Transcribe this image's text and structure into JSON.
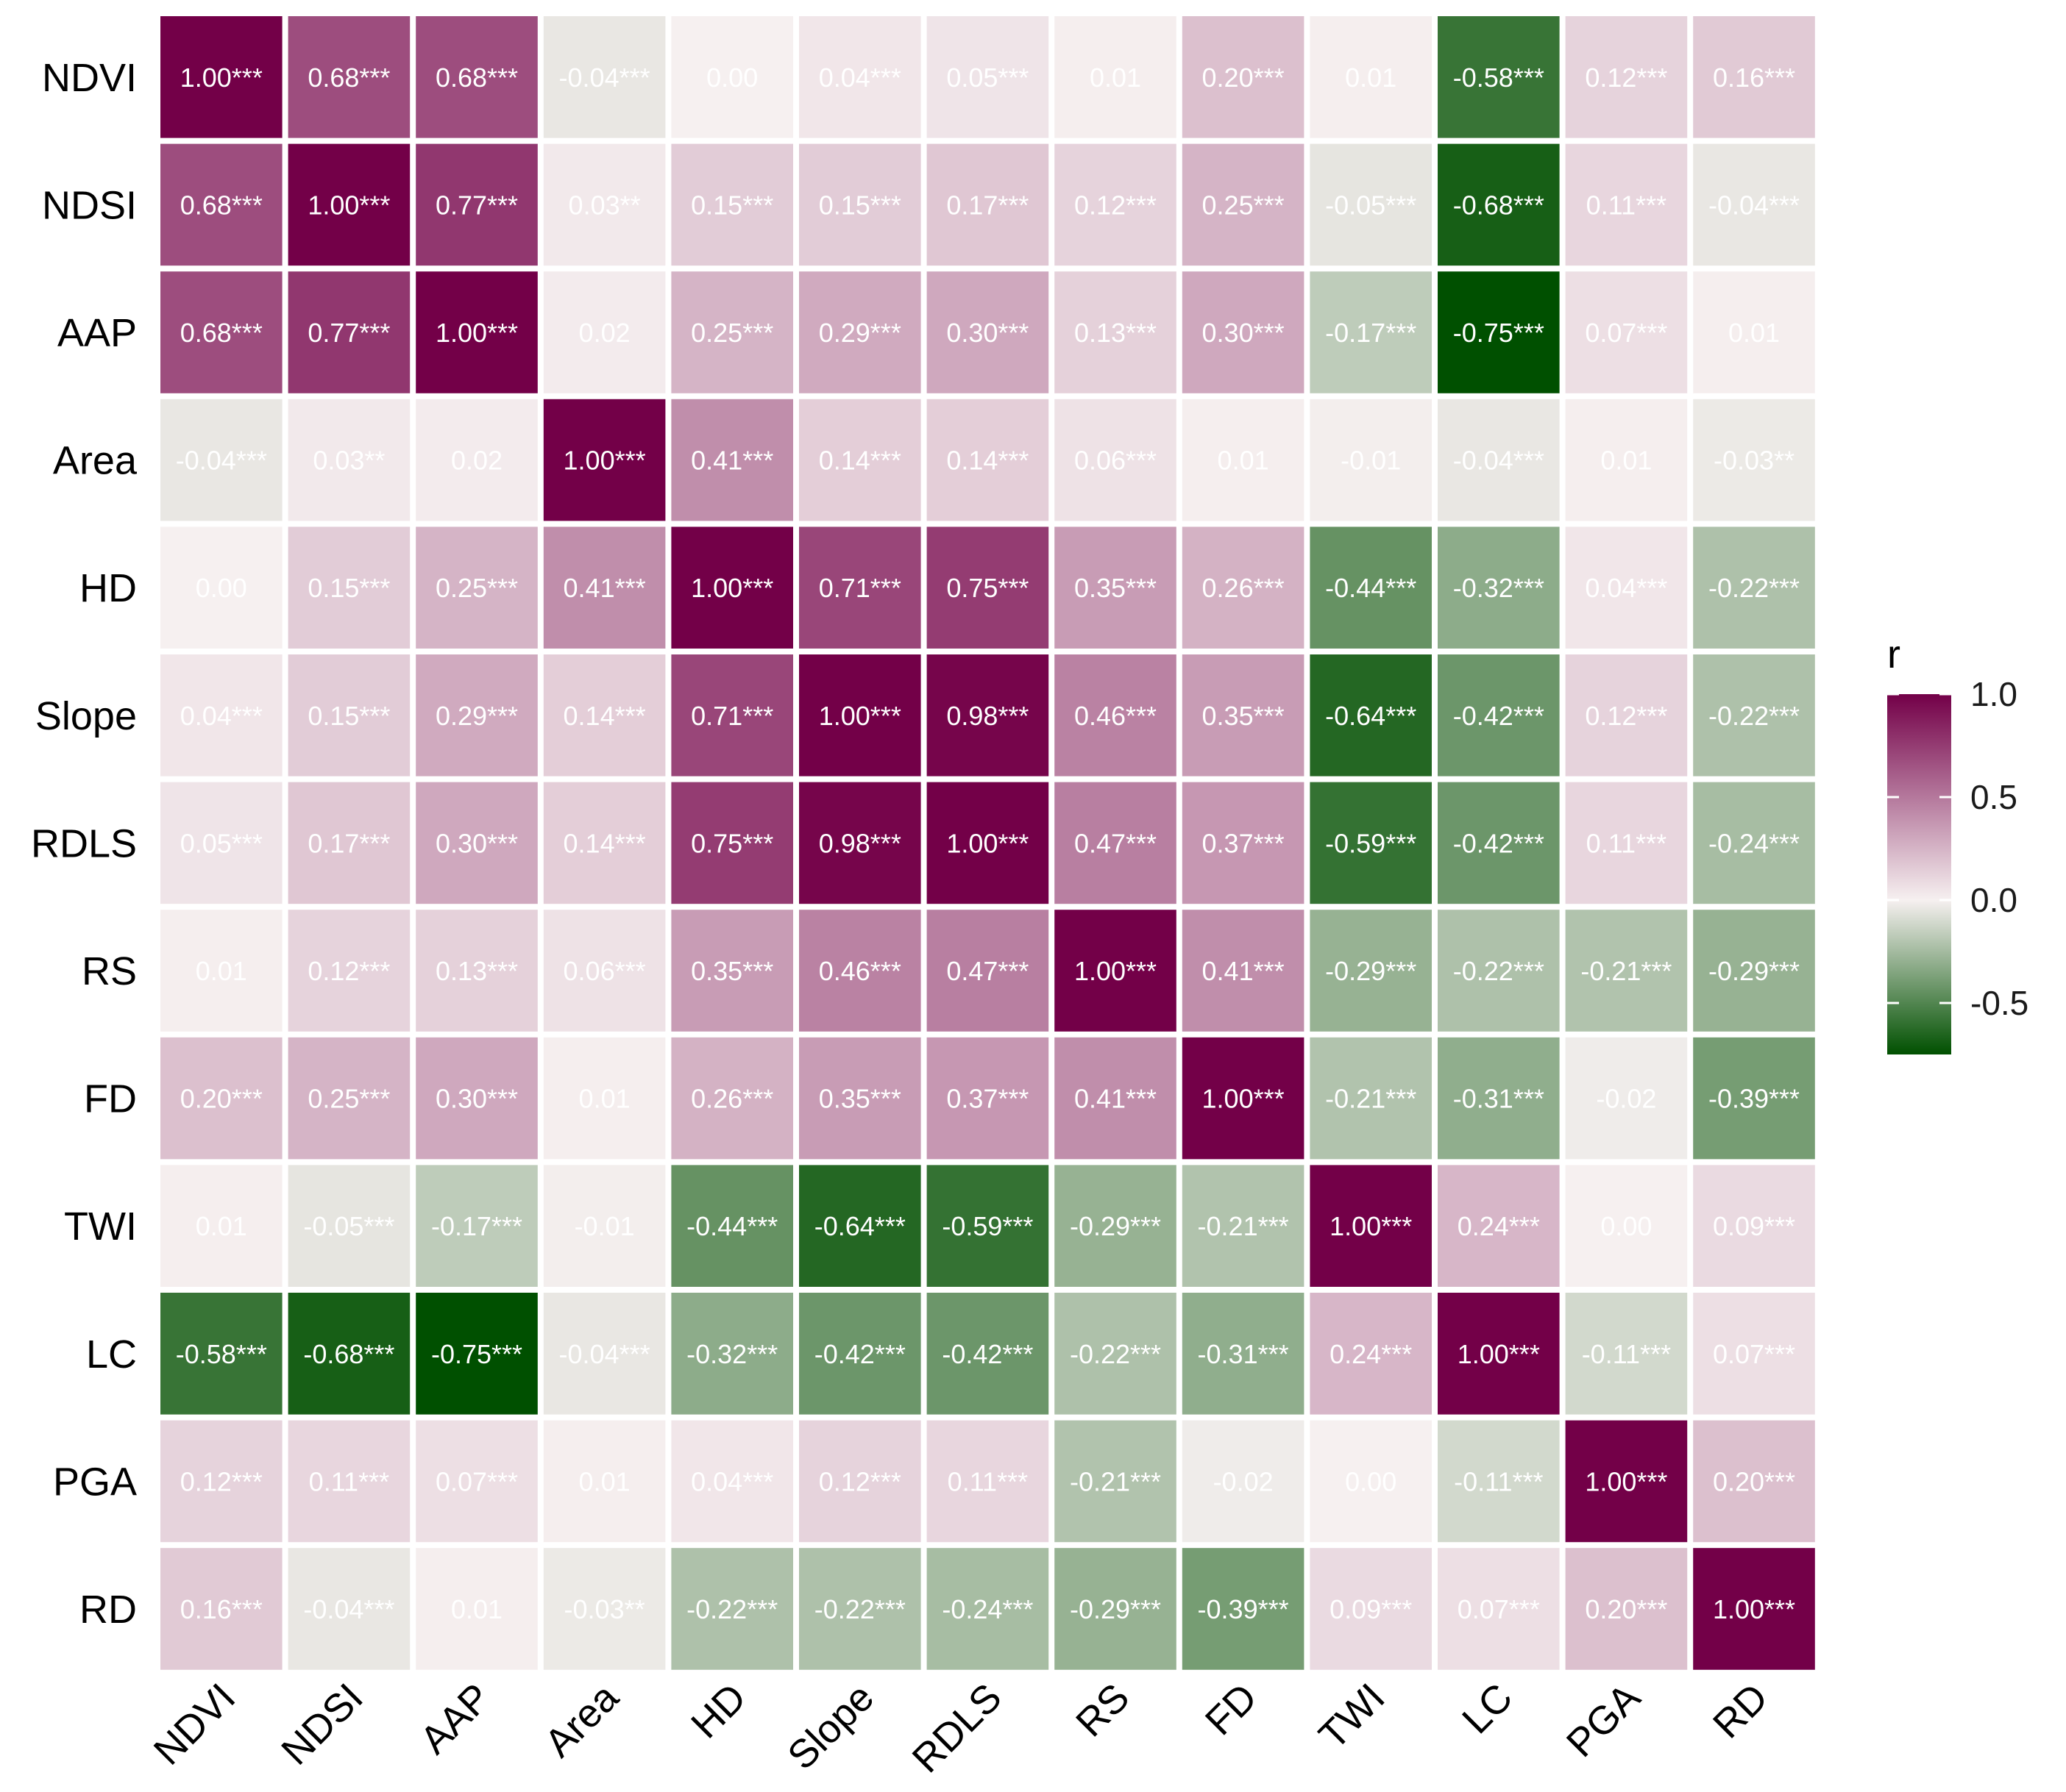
{
  "chart_data": {
    "type": "heatmap",
    "title": "",
    "xlabel": "",
    "ylabel": "",
    "variables": [
      "NDVI",
      "NDSI",
      "AAP",
      "Area",
      "HD",
      "Slope",
      "RDLS",
      "RS",
      "FD",
      "TWI",
      "LC",
      "PGA",
      "RD"
    ],
    "values": [
      [
        1.0,
        0.68,
        0.68,
        -0.04,
        0.0,
        0.04,
        0.05,
        0.01,
        0.2,
        0.01,
        -0.58,
        0.12,
        0.16
      ],
      [
        0.68,
        1.0,
        0.77,
        0.03,
        0.15,
        0.15,
        0.17,
        0.12,
        0.25,
        -0.05,
        -0.68,
        0.11,
        -0.04
      ],
      [
        0.68,
        0.77,
        1.0,
        0.02,
        0.25,
        0.29,
        0.3,
        0.13,
        0.3,
        -0.17,
        -0.75,
        0.07,
        0.01
      ],
      [
        -0.04,
        0.03,
        0.02,
        1.0,
        0.41,
        0.14,
        0.14,
        0.06,
        0.01,
        -0.01,
        -0.04,
        0.01,
        -0.03
      ],
      [
        0.0,
        0.15,
        0.25,
        0.41,
        1.0,
        0.71,
        0.75,
        0.35,
        0.26,
        -0.44,
        -0.32,
        0.04,
        -0.22
      ],
      [
        0.04,
        0.15,
        0.29,
        0.14,
        0.71,
        1.0,
        0.98,
        0.46,
        0.35,
        -0.64,
        -0.42,
        0.12,
        -0.22
      ],
      [
        0.05,
        0.17,
        0.3,
        0.14,
        0.75,
        0.98,
        1.0,
        0.47,
        0.37,
        -0.59,
        -0.42,
        0.11,
        -0.24
      ],
      [
        0.01,
        0.12,
        0.13,
        0.06,
        0.35,
        0.46,
        0.47,
        1.0,
        0.41,
        -0.29,
        -0.22,
        -0.21,
        -0.29
      ],
      [
        0.2,
        0.25,
        0.3,
        0.01,
        0.26,
        0.35,
        0.37,
        0.41,
        1.0,
        -0.21,
        -0.31,
        -0.02,
        -0.39
      ],
      [
        0.01,
        -0.05,
        -0.17,
        -0.01,
        -0.44,
        -0.64,
        -0.59,
        -0.29,
        -0.21,
        1.0,
        0.24,
        0.0,
        0.09
      ],
      [
        -0.58,
        -0.68,
        -0.75,
        -0.04,
        -0.32,
        -0.42,
        -0.42,
        -0.22,
        -0.31,
        0.24,
        1.0,
        -0.11,
        0.07
      ],
      [
        0.12,
        0.11,
        0.07,
        0.01,
        0.04,
        0.12,
        0.11,
        -0.21,
        -0.02,
        0.0,
        -0.11,
        1.0,
        0.2
      ],
      [
        0.16,
        -0.04,
        0.01,
        -0.03,
        -0.22,
        -0.22,
        -0.24,
        -0.29,
        -0.39,
        0.09,
        0.07,
        0.2,
        1.0
      ]
    ],
    "labels": [
      [
        "1.00***",
        "0.68***",
        "0.68***",
        "-0.04***",
        "0.00",
        "0.04***",
        "0.05***",
        "0.01",
        "0.20***",
        "0.01",
        "-0.58***",
        "0.12***",
        "0.16***"
      ],
      [
        "0.68***",
        "1.00***",
        "0.77***",
        "0.03**",
        "0.15***",
        "0.15***",
        "0.17***",
        "0.12***",
        "0.25***",
        "-0.05***",
        "-0.68***",
        "0.11***",
        "-0.04***"
      ],
      [
        "0.68***",
        "0.77***",
        "1.00***",
        "0.02",
        "0.25***",
        "0.29***",
        "0.30***",
        "0.13***",
        "0.30***",
        "-0.17***",
        "-0.75***",
        "0.07***",
        "0.01"
      ],
      [
        "-0.04***",
        "0.03**",
        "0.02",
        "1.00***",
        "0.41***",
        "0.14***",
        "0.14***",
        "0.06***",
        "0.01",
        "-0.01",
        "-0.04***",
        "0.01",
        "-0.03**"
      ],
      [
        "0.00",
        "0.15***",
        "0.25***",
        "0.41***",
        "1.00***",
        "0.71***",
        "0.75***",
        "0.35***",
        "0.26***",
        "-0.44***",
        "-0.32***",
        "0.04***",
        "-0.22***"
      ],
      [
        "0.04***",
        "0.15***",
        "0.29***",
        "0.14***",
        "0.71***",
        "1.00***",
        "0.98***",
        "0.46***",
        "0.35***",
        "-0.64***",
        "-0.42***",
        "0.12***",
        "-0.22***"
      ],
      [
        "0.05***",
        "0.17***",
        "0.30***",
        "0.14***",
        "0.75***",
        "0.98***",
        "1.00***",
        "0.47***",
        "0.37***",
        "-0.59***",
        "-0.42***",
        "0.11***",
        "-0.24***"
      ],
      [
        "0.01",
        "0.12***",
        "0.13***",
        "0.06***",
        "0.35***",
        "0.46***",
        "0.47***",
        "1.00***",
        "0.41***",
        "-0.29***",
        "-0.22***",
        "-0.21***",
        "-0.29***"
      ],
      [
        "0.20***",
        "0.25***",
        "0.30***",
        "0.01",
        "0.26***",
        "0.35***",
        "0.37***",
        "0.41***",
        "1.00***",
        "-0.21***",
        "-0.31***",
        "-0.02",
        "-0.39***"
      ],
      [
        "0.01",
        "-0.05***",
        "-0.17***",
        "-0.01",
        "-0.44***",
        "-0.64***",
        "-0.59***",
        "-0.29***",
        "-0.21***",
        "1.00***",
        "0.24***",
        "0.00",
        "0.09***"
      ],
      [
        "-0.58***",
        "-0.68***",
        "-0.75***",
        "-0.04***",
        "-0.32***",
        "-0.42***",
        "-0.42***",
        "-0.22***",
        "-0.31***",
        "0.24***",
        "1.00***",
        "-0.11***",
        "0.07***"
      ],
      [
        "0.12***",
        "0.11***",
        "0.07***",
        "0.01",
        "0.04***",
        "0.12***",
        "0.11***",
        "-0.21***",
        "-0.02",
        "0.00",
        "-0.11***",
        "1.00***",
        "0.20***"
      ],
      [
        "0.16***",
        "-0.04***",
        "0.01",
        "-0.03**",
        "-0.22***",
        "-0.22***",
        "-0.24***",
        "-0.29***",
        "-0.39***",
        "0.09***",
        "0.07***",
        "0.20***",
        "1.00***"
      ]
    ],
    "legend": {
      "title": "r",
      "ticks": [
        "1.0",
        "0.5",
        "0.0",
        "-0.5"
      ],
      "tick_values": [
        1.0,
        0.5,
        0.0,
        -0.5
      ],
      "range": [
        -0.75,
        1.0
      ],
      "placement": "right"
    },
    "colors": {
      "high": "#730048",
      "mid": "#f6f0f0",
      "low": "#005000",
      "label_text": "#ffffff"
    }
  }
}
